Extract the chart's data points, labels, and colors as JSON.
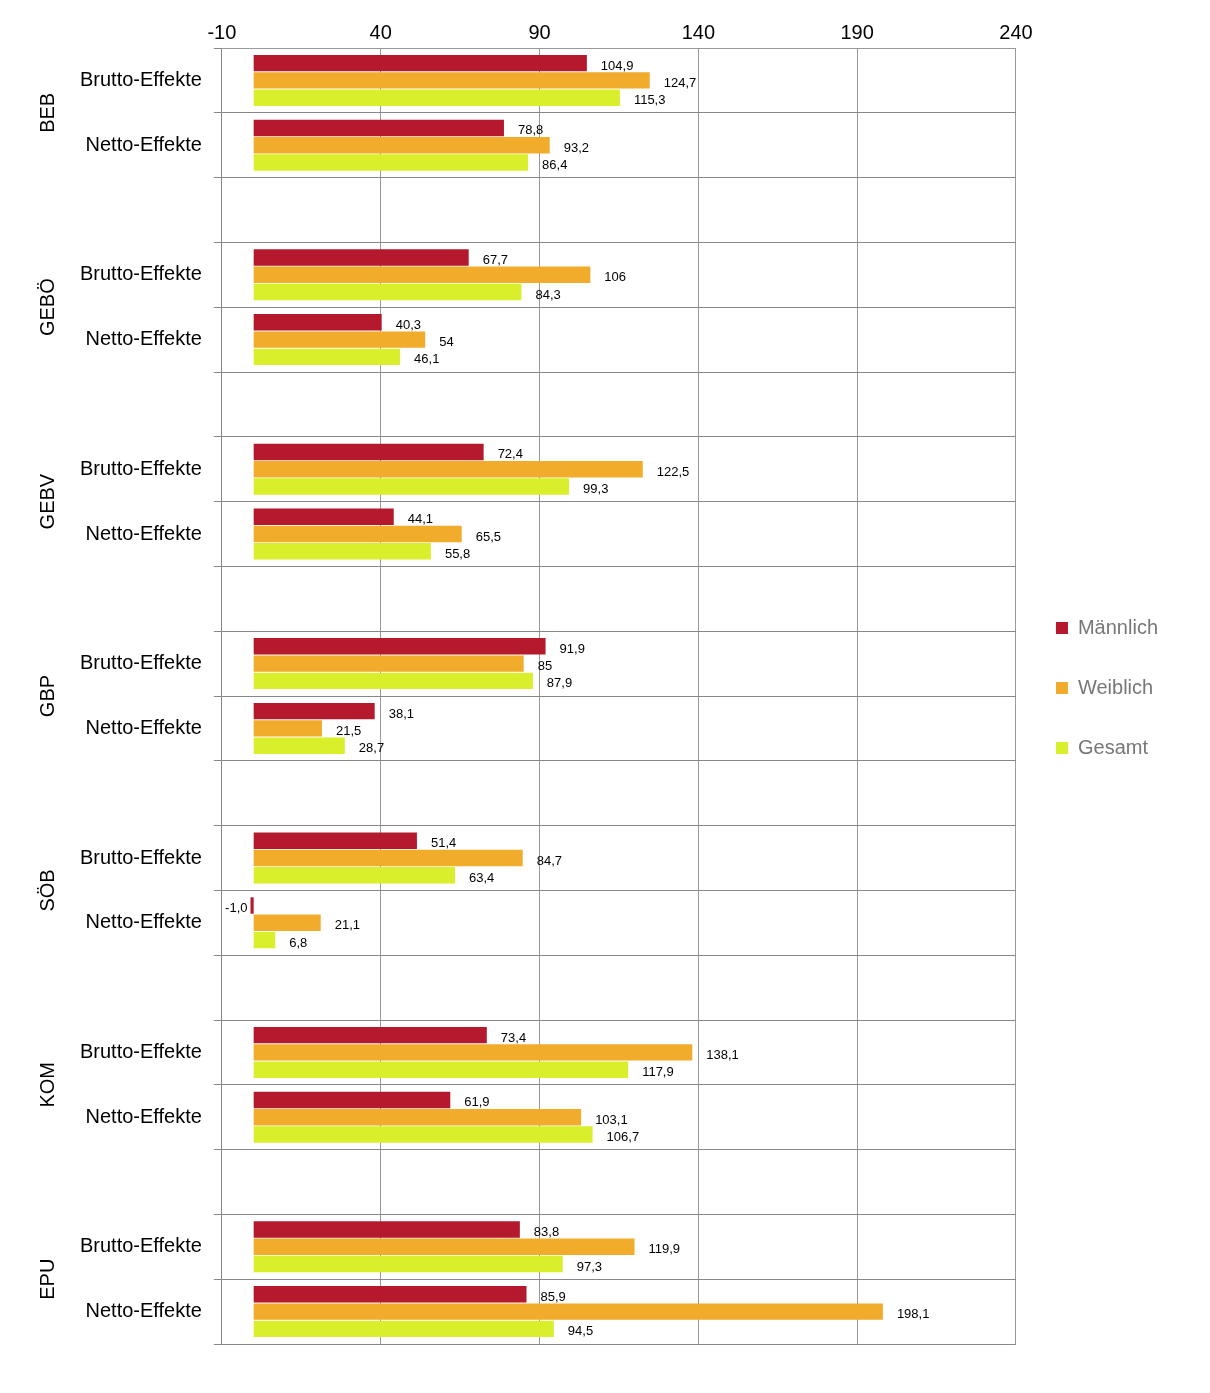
{
  "chart_data": {
    "type": "bar",
    "orientation": "horizontal",
    "categories": [
      "Brutto-Effekte",
      "Netto-Effekte",
      null,
      "Brutto-Effekte",
      "Netto-Effekte",
      null,
      "Brutto-Effekte",
      "Netto-Effekte",
      null,
      "Brutto-Effekte",
      "Netto-Effekte",
      null,
      "Brutto-Effekte",
      "Netto-Effekte",
      null,
      "Brutto-Effekte",
      "Netto-Effekte",
      null,
      "Brutto-Effekte",
      "Netto-Effekte"
    ],
    "annotations": [
      "BEB",
      "GEBÖ",
      "GEBV",
      "GBP",
      "SÖB",
      "KOM",
      "EPU"
    ],
    "series": [
      {
        "name": "Männlich",
        "color": "#b5192d",
        "values": [
          104.9,
          78.8,
          null,
          67.7,
          40.3,
          null,
          72.4,
          44.1,
          null,
          91.9,
          38.1,
          null,
          51.4,
          -1.0,
          null,
          73.4,
          61.9,
          null,
          83.8,
          85.9
        ],
        "value_labels": [
          "104,9",
          "78,8",
          null,
          "67,7",
          "40,3",
          null,
          "72,4",
          "44,1",
          null,
          "91,9",
          "38,1",
          null,
          "51,4",
          "-1,0",
          null,
          "73,4",
          "61,9",
          null,
          "83,8",
          "85,9"
        ]
      },
      {
        "name": "Weiblich",
        "color": "#f2ac2b",
        "values": [
          124.7,
          93.2,
          null,
          106,
          54,
          null,
          122.5,
          65.5,
          null,
          85,
          21.5,
          null,
          84.7,
          21.1,
          null,
          138.1,
          103.1,
          null,
          119.9,
          198.1
        ],
        "value_labels": [
          "124,7",
          "93,2",
          null,
          "106",
          "54",
          null,
          "122,5",
          "65,5",
          null,
          "85",
          "21,5",
          null,
          "84,7",
          "21,1",
          null,
          "138,1",
          "103,1",
          null,
          "119,9",
          "198,1"
        ]
      },
      {
        "name": "Gesamt",
        "color": "#d9ef2b",
        "values": [
          115.3,
          86.4,
          null,
          84.3,
          46.1,
          null,
          99.3,
          55.8,
          null,
          87.9,
          28.7,
          null,
          63.4,
          6.8,
          null,
          117.9,
          106.7,
          null,
          97.3,
          94.5
        ],
        "value_labels": [
          "115,3",
          "86,4",
          null,
          "84,3",
          "46,1",
          null,
          "99,3",
          "55,8",
          null,
          "87,9",
          "28,7",
          null,
          "63,4",
          "6,8",
          null,
          "117,9",
          "106,7",
          null,
          "97,3",
          "94,5"
        ]
      }
    ],
    "xlim": [
      -10,
      240
    ],
    "xticks": [
      -10,
      40,
      90,
      140,
      190,
      240
    ],
    "grid": true,
    "legend": "right"
  }
}
